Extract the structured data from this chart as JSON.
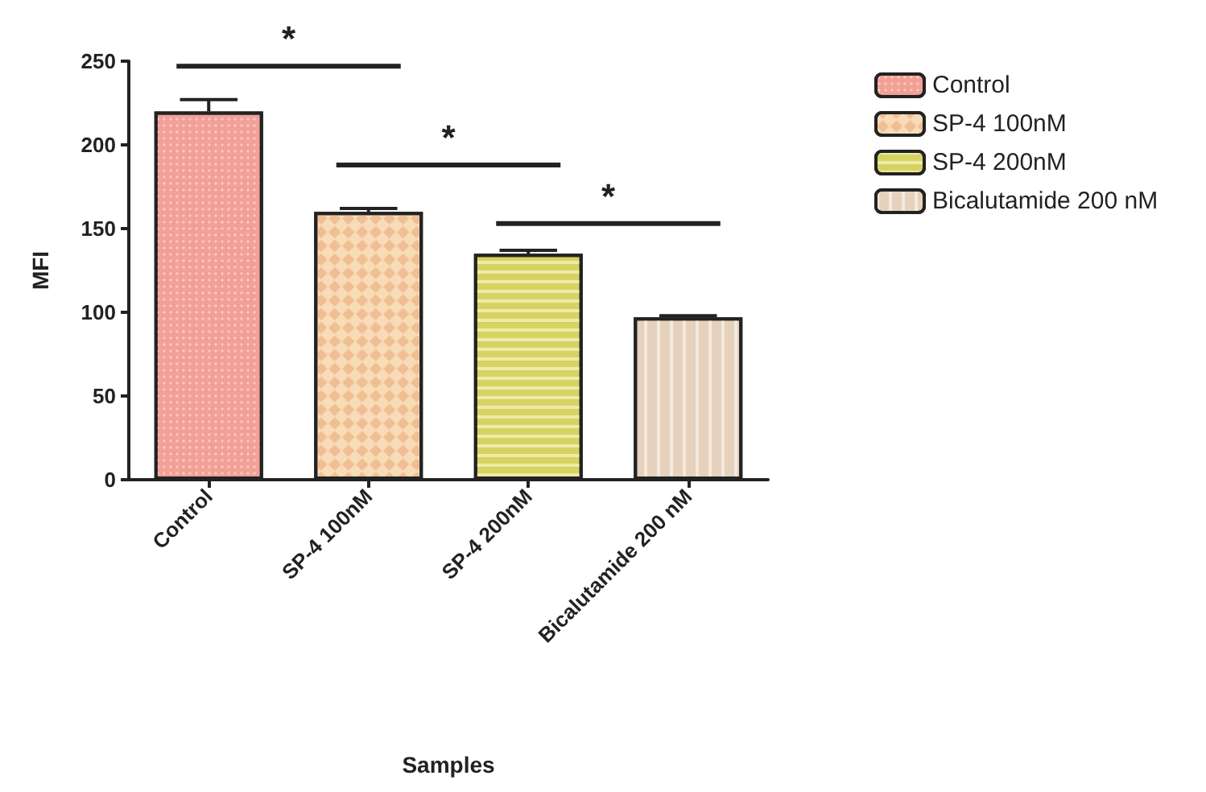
{
  "chart_data": {
    "type": "bar",
    "xlabel": "Samples",
    "ylabel": "MFI",
    "categories": [
      "Control",
      "SP-4 100nM",
      "SP-4 200nM",
      "Bicalutamide 200 nM"
    ],
    "series": [
      {
        "name": "Control",
        "color": "#f2a096",
        "values": [
          220,
          null,
          null,
          null
        ],
        "errors": [
          7,
          null,
          null,
          null
        ]
      },
      {
        "name": "SP-4 100nM",
        "color": "#f8dcb8",
        "values": [
          null,
          160,
          null,
          null
        ],
        "errors": [
          null,
          2,
          null,
          null
        ]
      },
      {
        "name": "SP-4 200nM",
        "color": "#d6d363",
        "values": [
          null,
          null,
          135,
          null
        ],
        "errors": [
          null,
          null,
          2,
          null
        ]
      },
      {
        "name": "Bicalutamide 200 nM",
        "color": "#e6d2bc",
        "values": [
          null,
          null,
          null,
          97
        ],
        "errors": [
          null,
          null,
          null,
          1
        ]
      }
    ],
    "ylim": [
      0,
      250
    ],
    "yticks": [
      0,
      50,
      100,
      150,
      200,
      250
    ],
    "grid": false,
    "legend": "top right",
    "annotations": [
      "*",
      "*",
      "*"
    ]
  }
}
